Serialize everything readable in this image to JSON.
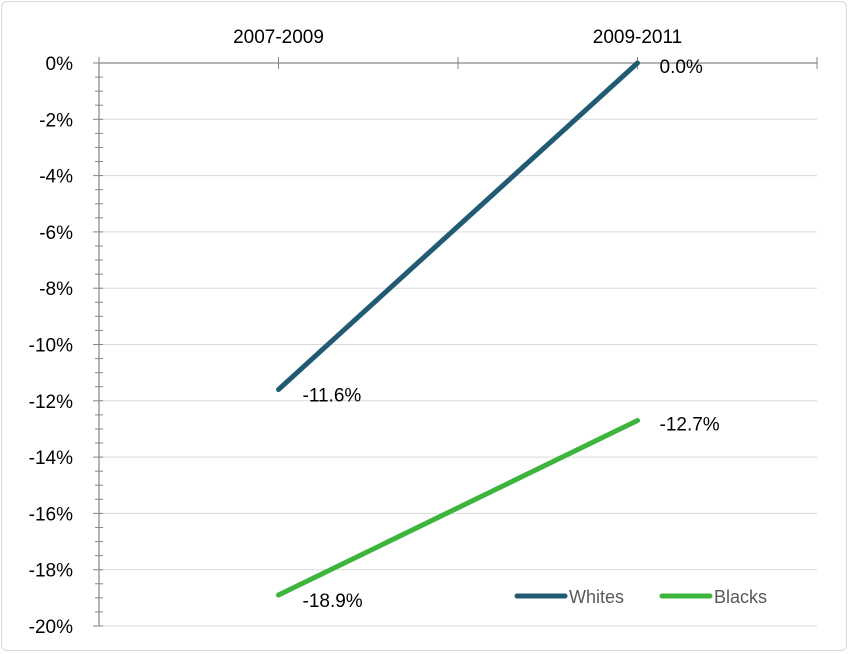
{
  "chart_data": {
    "type": "line",
    "categories": [
      "2007-2009",
      "2009-2011"
    ],
    "series": [
      {
        "name": "Whites",
        "values": [
          -11.6,
          0.0
        ],
        "labels": [
          "-11.6%",
          "0.0%"
        ],
        "color": "#215a73"
      },
      {
        "name": "Blacks",
        "values": [
          -18.9,
          -12.7
        ],
        "labels": [
          "-18.9%",
          "-12.7%"
        ],
        "color": "#3db53d"
      }
    ],
    "y_ticks": [
      0,
      -2,
      -4,
      -6,
      -8,
      -10,
      -12,
      -14,
      -16,
      -18,
      -20
    ],
    "y_tick_labels": [
      "0%",
      "-2%",
      "-4%",
      "-6%",
      "-8%",
      "-10%",
      "-12%",
      "-14%",
      "-16%",
      "-18%",
      "-20%"
    ],
    "ylim": [
      -20,
      0
    ],
    "x_axis_position": "top",
    "grid": true,
    "legend": "bottom-right",
    "title": "",
    "xlabel": "",
    "ylabel": ""
  }
}
